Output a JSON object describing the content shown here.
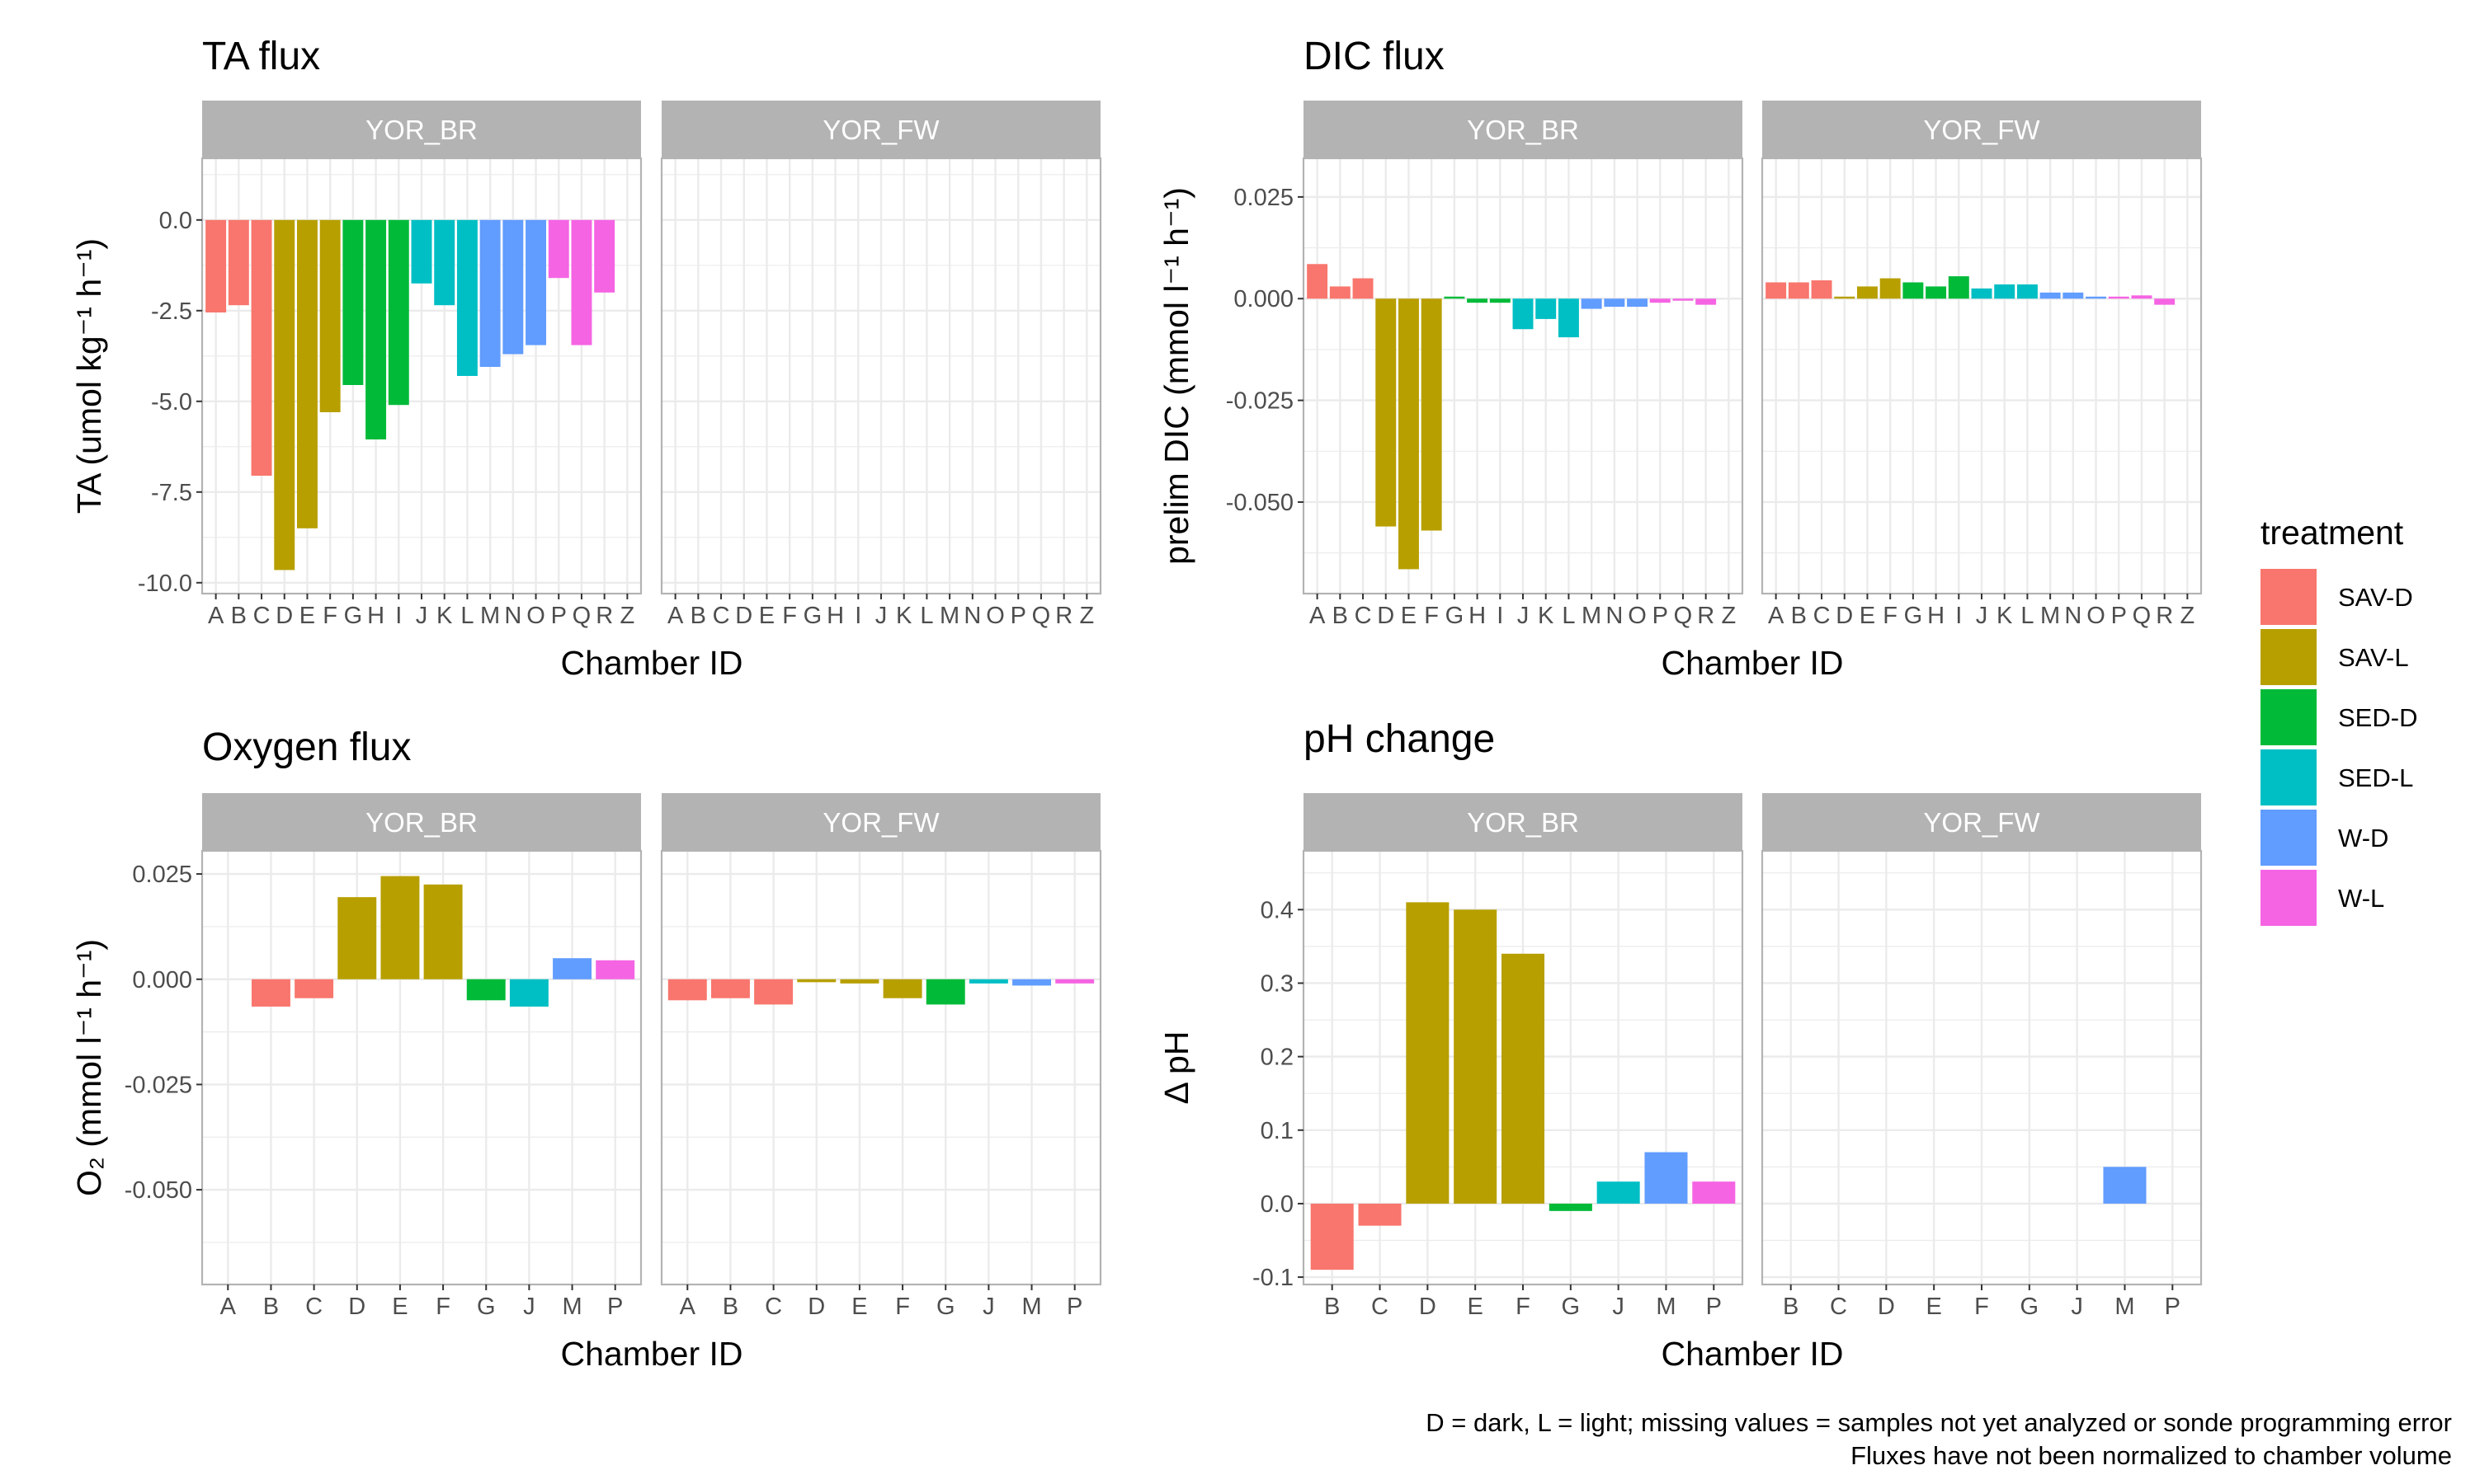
{
  "chart_data": [
    {
      "type": "bar",
      "title": "TA flux",
      "xlabel": "Chamber ID",
      "ylabel": "TA (umol kg⁻¹ h⁻¹)",
      "ylim": [
        -10.3,
        1.7
      ],
      "yticks": [
        0.0,
        -2.5,
        -5.0,
        -7.5,
        -10.0
      ],
      "ytick_labels": [
        "0.0",
        "-2.5",
        "-5.0",
        "-7.5",
        "-10.0"
      ],
      "categories": [
        "A",
        "B",
        "C",
        "D",
        "E",
        "F",
        "G",
        "H",
        "I",
        "J",
        "K",
        "L",
        "M",
        "N",
        "O",
        "P",
        "Q",
        "R",
        "Z"
      ],
      "facets": [
        {
          "name": "YOR_BR",
          "bars": [
            {
              "x": "A",
              "value": -2.55,
              "treatment": "SAV-D"
            },
            {
              "x": "B",
              "value": -2.35,
              "treatment": "SAV-D"
            },
            {
              "x": "C",
              "value": -7.05,
              "treatment": "SAV-D"
            },
            {
              "x": "D",
              "value": -9.65,
              "treatment": "SAV-L"
            },
            {
              "x": "E",
              "value": -8.5,
              "treatment": "SAV-L"
            },
            {
              "x": "F",
              "value": -5.3,
              "treatment": "SAV-L"
            },
            {
              "x": "G",
              "value": -4.55,
              "treatment": "SED-D"
            },
            {
              "x": "H",
              "value": -6.05,
              "treatment": "SED-D"
            },
            {
              "x": "I",
              "value": -5.1,
              "treatment": "SED-D"
            },
            {
              "x": "J",
              "value": -1.75,
              "treatment": "SED-L"
            },
            {
              "x": "K",
              "value": -2.35,
              "treatment": "SED-L"
            },
            {
              "x": "L",
              "value": -4.3,
              "treatment": "SED-L"
            },
            {
              "x": "M",
              "value": -4.05,
              "treatment": "W-D"
            },
            {
              "x": "N",
              "value": -3.7,
              "treatment": "W-D"
            },
            {
              "x": "O",
              "value": -3.45,
              "treatment": "W-D"
            },
            {
              "x": "P",
              "value": -1.6,
              "treatment": "W-L"
            },
            {
              "x": "Q",
              "value": -3.45,
              "treatment": "W-L"
            },
            {
              "x": "R",
              "value": -2.0,
              "treatment": "W-L"
            }
          ]
        },
        {
          "name": "YOR_FW",
          "bars": []
        }
      ]
    },
    {
      "type": "bar",
      "title": "DIC flux",
      "xlabel": "Chamber ID",
      "ylabel": "prelim DIC (mmol l⁻¹ h⁻¹)",
      "ylim": [
        -0.0725,
        0.0345
      ],
      "yticks": [
        0.025,
        0.0,
        -0.025,
        -0.05
      ],
      "ytick_labels": [
        "0.025",
        "0.000",
        "-0.025",
        "-0.050"
      ],
      "categories": [
        "A",
        "B",
        "C",
        "D",
        "E",
        "F",
        "G",
        "H",
        "I",
        "J",
        "K",
        "L",
        "M",
        "N",
        "O",
        "P",
        "Q",
        "R",
        "Z"
      ],
      "facets": [
        {
          "name": "YOR_BR",
          "bars": [
            {
              "x": "A",
              "value": 0.0085,
              "treatment": "SAV-D"
            },
            {
              "x": "B",
              "value": 0.003,
              "treatment": "SAV-D"
            },
            {
              "x": "C",
              "value": 0.005,
              "treatment": "SAV-D"
            },
            {
              "x": "D",
              "value": -0.056,
              "treatment": "SAV-L"
            },
            {
              "x": "E",
              "value": -0.0665,
              "treatment": "SAV-L"
            },
            {
              "x": "F",
              "value": -0.057,
              "treatment": "SAV-L"
            },
            {
              "x": "G",
              "value": 0.0005,
              "treatment": "SED-D"
            },
            {
              "x": "H",
              "value": -0.001,
              "treatment": "SED-D"
            },
            {
              "x": "I",
              "value": -0.001,
              "treatment": "SED-D"
            },
            {
              "x": "J",
              "value": -0.0075,
              "treatment": "SED-L"
            },
            {
              "x": "K",
              "value": -0.005,
              "treatment": "SED-L"
            },
            {
              "x": "L",
              "value": -0.0095,
              "treatment": "SED-L"
            },
            {
              "x": "M",
              "value": -0.0025,
              "treatment": "W-D"
            },
            {
              "x": "N",
              "value": -0.002,
              "treatment": "W-D"
            },
            {
              "x": "O",
              "value": -0.002,
              "treatment": "W-D"
            },
            {
              "x": "P",
              "value": -0.001,
              "treatment": "W-L"
            },
            {
              "x": "Q",
              "value": -0.0005,
              "treatment": "W-L"
            },
            {
              "x": "R",
              "value": -0.0015,
              "treatment": "W-L"
            }
          ]
        },
        {
          "name": "YOR_FW",
          "bars": [
            {
              "x": "A",
              "value": 0.004,
              "treatment": "SAV-D"
            },
            {
              "x": "B",
              "value": 0.004,
              "treatment": "SAV-D"
            },
            {
              "x": "C",
              "value": 0.0045,
              "treatment": "SAV-D"
            },
            {
              "x": "D",
              "value": 0.0005,
              "treatment": "SAV-L"
            },
            {
              "x": "E",
              "value": 0.003,
              "treatment": "SAV-L"
            },
            {
              "x": "F",
              "value": 0.005,
              "treatment": "SAV-L"
            },
            {
              "x": "G",
              "value": 0.004,
              "treatment": "SED-D"
            },
            {
              "x": "H",
              "value": 0.003,
              "treatment": "SED-D"
            },
            {
              "x": "I",
              "value": 0.0055,
              "treatment": "SED-D"
            },
            {
              "x": "J",
              "value": 0.0025,
              "treatment": "SED-L"
            },
            {
              "x": "K",
              "value": 0.0035,
              "treatment": "SED-L"
            },
            {
              "x": "L",
              "value": 0.0035,
              "treatment": "SED-L"
            },
            {
              "x": "M",
              "value": 0.0015,
              "treatment": "W-D"
            },
            {
              "x": "N",
              "value": 0.0015,
              "treatment": "W-D"
            },
            {
              "x": "O",
              "value": 0.0005,
              "treatment": "W-D"
            },
            {
              "x": "P",
              "value": 0.0005,
              "treatment": "W-L"
            },
            {
              "x": "Q",
              "value": 0.0008,
              "treatment": "W-L"
            },
            {
              "x": "R",
              "value": -0.0015,
              "treatment": "W-L"
            }
          ]
        }
      ]
    },
    {
      "type": "bar",
      "title": "Oxygen flux",
      "xlabel": "Chamber ID",
      "ylabel": "O₂ (mmol l⁻¹ h⁻¹)",
      "ylim": [
        -0.0725,
        0.0305
      ],
      "yticks": [
        0.025,
        0.0,
        -0.025,
        -0.05
      ],
      "ytick_labels": [
        "0.025",
        "0.000",
        "-0.025",
        "-0.050"
      ],
      "categories": [
        "A",
        "B",
        "C",
        "D",
        "E",
        "F",
        "G",
        "J",
        "M",
        "P"
      ],
      "facets": [
        {
          "name": "YOR_BR",
          "bars": [
            {
              "x": "B",
              "value": -0.0065,
              "treatment": "SAV-D"
            },
            {
              "x": "C",
              "value": -0.0045,
              "treatment": "SAV-D"
            },
            {
              "x": "D",
              "value": 0.0195,
              "treatment": "SAV-L"
            },
            {
              "x": "E",
              "value": 0.0245,
              "treatment": "SAV-L"
            },
            {
              "x": "F",
              "value": 0.0225,
              "treatment": "SAV-L"
            },
            {
              "x": "G",
              "value": -0.005,
              "treatment": "SED-D"
            },
            {
              "x": "J",
              "value": -0.0065,
              "treatment": "SED-L"
            },
            {
              "x": "M",
              "value": 0.005,
              "treatment": "W-D"
            },
            {
              "x": "P",
              "value": 0.0045,
              "treatment": "W-L"
            }
          ]
        },
        {
          "name": "YOR_FW",
          "bars": [
            {
              "x": "A",
              "value": -0.005,
              "treatment": "SAV-D"
            },
            {
              "x": "B",
              "value": -0.0045,
              "treatment": "SAV-D"
            },
            {
              "x": "C",
              "value": -0.006,
              "treatment": "SAV-D"
            },
            {
              "x": "D",
              "value": -0.0007,
              "treatment": "SAV-L"
            },
            {
              "x": "E",
              "value": -0.001,
              "treatment": "SAV-L"
            },
            {
              "x": "F",
              "value": -0.0045,
              "treatment": "SAV-L"
            },
            {
              "x": "G",
              "value": -0.006,
              "treatment": "SED-D"
            },
            {
              "x": "J",
              "value": -0.001,
              "treatment": "SED-L"
            },
            {
              "x": "M",
              "value": -0.0015,
              "treatment": "W-D"
            },
            {
              "x": "P",
              "value": -0.001,
              "treatment": "W-L"
            }
          ]
        }
      ]
    },
    {
      "type": "bar",
      "title": "pH change",
      "xlabel": "Chamber ID",
      "ylabel": "Δ pH",
      "ylim": [
        -0.11,
        0.48
      ],
      "yticks": [
        0.4,
        0.3,
        0.2,
        0.1,
        0.0,
        -0.1
      ],
      "ytick_labels": [
        "0.4",
        "0.3",
        "0.2",
        "0.1",
        "0.0",
        "-0.1"
      ],
      "categories": [
        "B",
        "C",
        "D",
        "E",
        "F",
        "G",
        "J",
        "M",
        "P"
      ],
      "facets": [
        {
          "name": "YOR_BR",
          "bars": [
            {
              "x": "B",
              "value": -0.09,
              "treatment": "SAV-D"
            },
            {
              "x": "C",
              "value": -0.03,
              "treatment": "SAV-D"
            },
            {
              "x": "D",
              "value": 0.41,
              "treatment": "SAV-L"
            },
            {
              "x": "E",
              "value": 0.4,
              "treatment": "SAV-L"
            },
            {
              "x": "F",
              "value": 0.34,
              "treatment": "SAV-L"
            },
            {
              "x": "G",
              "value": -0.01,
              "treatment": "SED-D"
            },
            {
              "x": "J",
              "value": 0.03,
              "treatment": "SED-L"
            },
            {
              "x": "M",
              "value": 0.07,
              "treatment": "W-D"
            },
            {
              "x": "P",
              "value": 0.03,
              "treatment": "W-L"
            }
          ]
        },
        {
          "name": "YOR_FW",
          "bars": [
            {
              "x": "M",
              "value": 0.05,
              "treatment": "W-D"
            }
          ]
        }
      ]
    }
  ],
  "legend": {
    "title": "treatment",
    "placement": "right",
    "items": [
      {
        "label": "SAV-D",
        "color": "#F8766D"
      },
      {
        "label": "SAV-L",
        "color": "#B79F00"
      },
      {
        "label": "SED-D",
        "color": "#00BA38"
      },
      {
        "label": "SED-L",
        "color": "#00BFC4"
      },
      {
        "label": "W-D",
        "color": "#619CFF"
      },
      {
        "label": "W-L",
        "color": "#F564E3"
      }
    ]
  },
  "caption": [
    "D = dark, L = light; missing values = samples not yet analyzed or sonde programming error",
    "Fluxes have not been normalized to chamber volume"
  ],
  "colors": {
    "strip_fill": "#B3B3B3",
    "panel_border": "#B3B3B3",
    "grid": "#EBEBEB"
  }
}
